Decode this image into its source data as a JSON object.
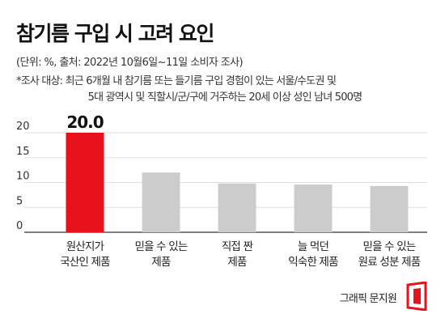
{
  "header": {
    "title": "참기름 구입 시 고려 요인",
    "source": "(단위: %, 출처: 2022년 10월6일~11일 소비자 조사)",
    "note_line1": "*조사 대상: 최근 6개월 내 참기름 또는 들기름 구입 경험이 있는 서울/수도권 및",
    "note_line2": "5대 광역시 및 직할시/군/구에 거주하는 20세 이상 성인 남녀 500명"
  },
  "footer": {
    "credit": "그래픽 문지원"
  },
  "colors": {
    "highlight": "#e8121c",
    "bar": "#cccccc",
    "grid": "#dddddd",
    "axis": "#333333"
  },
  "chart_data": {
    "type": "bar",
    "categories": [
      [
        "원산지가",
        "국산인 제품"
      ],
      [
        "믿을 수 있는",
        "제품"
      ],
      [
        "직접 짠",
        "제품"
      ],
      [
        "늘 먹던",
        "익숙한 제품"
      ],
      [
        "믿을 수 있는",
        "원료 성분 제품"
      ]
    ],
    "values": [
      20.0,
      12.0,
      9.8,
      9.6,
      9.3
    ],
    "data_labels": [
      "20.0",
      "",
      "",
      "",
      ""
    ],
    "highlight_index": 0,
    "ylim": [
      0,
      20
    ],
    "yticks": [
      0,
      5,
      10,
      15,
      20
    ],
    "grid": true,
    "title": "참기름 구입 시 고려 요인",
    "xlabel": "",
    "ylabel": ""
  }
}
